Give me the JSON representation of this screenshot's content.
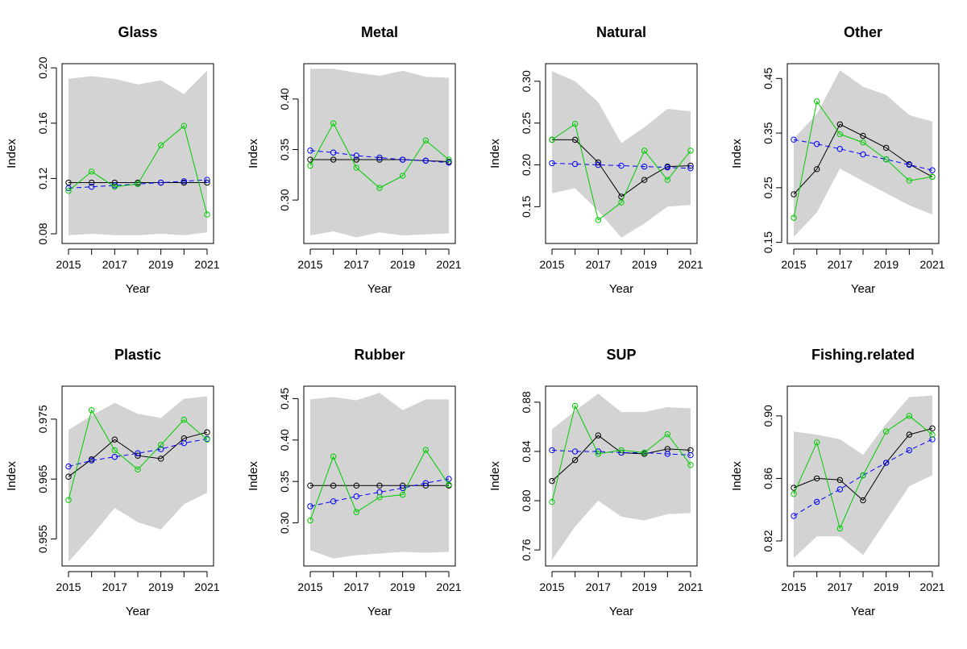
{
  "chart_data": [
    {
      "type": "line",
      "title": "Glass",
      "xlabel": "Year",
      "ylabel": "Index",
      "x": [
        2015,
        2016,
        2017,
        2018,
        2019,
        2020,
        2021
      ],
      "x_ticks": [
        "2015",
        "2017",
        "2019",
        "2021"
      ],
      "ylim": [
        0.073,
        0.203
      ],
      "y_ticks": [
        0.08,
        0.12,
        0.16,
        0.2
      ],
      "y_tick_labels": [
        "0.08",
        "0.12",
        "0.16",
        "0.20"
      ],
      "band": {
        "lower": [
          0.079,
          0.08,
          0.079,
          0.079,
          0.08,
          0.079,
          0.081
        ],
        "upper": [
          0.192,
          0.194,
          0.192,
          0.188,
          0.191,
          0.181,
          0.198
        ]
      },
      "series": [
        {
          "color": "#000000",
          "dash": "solid",
          "values": [
            0.117,
            0.117,
            0.117,
            0.117,
            0.117,
            0.117,
            0.117
          ]
        },
        {
          "color": "#0000ff",
          "dash": "dashed",
          "values": [
            0.113,
            0.114,
            0.115,
            0.116,
            0.117,
            0.118,
            0.119
          ]
        },
        {
          "color": "#00cc00",
          "dash": "solid",
          "values": [
            0.111,
            0.125,
            0.114,
            0.116,
            0.144,
            0.158,
            0.094
          ]
        }
      ]
    },
    {
      "type": "line",
      "title": "Metal",
      "xlabel": "Year",
      "ylabel": "Index",
      "x": [
        2015,
        2016,
        2017,
        2018,
        2019,
        2020,
        2021
      ],
      "x_ticks": [
        "2015",
        "2017",
        "2019",
        "2021"
      ],
      "ylim": [
        0.257,
        0.435
      ],
      "y_ticks": [
        0.3,
        0.35,
        0.4
      ],
      "y_tick_labels": [
        "0.30",
        "0.35",
        "0.40"
      ],
      "band": {
        "lower": [
          0.265,
          0.269,
          0.263,
          0.268,
          0.265,
          0.266,
          0.267
        ],
        "upper": [
          0.43,
          0.43,
          0.426,
          0.423,
          0.428,
          0.422,
          0.421
        ]
      },
      "series": [
        {
          "color": "#000000",
          "dash": "solid",
          "values": [
            0.34,
            0.34,
            0.34,
            0.34,
            0.34,
            0.339,
            0.338
          ]
        },
        {
          "color": "#0000ff",
          "dash": "dashed",
          "values": [
            0.349,
            0.347,
            0.344,
            0.342,
            0.34,
            0.339,
            0.337
          ]
        },
        {
          "color": "#00cc00",
          "dash": "solid",
          "values": [
            0.334,
            0.376,
            0.332,
            0.312,
            0.324,
            0.359,
            0.34
          ]
        }
      ]
    },
    {
      "type": "line",
      "title": "Natural",
      "xlabel": "Year",
      "ylabel": "Index",
      "x": [
        2015,
        2016,
        2017,
        2018,
        2019,
        2020,
        2021
      ],
      "x_ticks": [
        "2015",
        "2017",
        "2019",
        "2021"
      ],
      "ylim": [
        0.106,
        0.321
      ],
      "y_ticks": [
        0.15,
        0.2,
        0.25,
        0.3
      ],
      "y_tick_labels": [
        "0.15",
        "0.20",
        "0.25",
        "0.30"
      ],
      "band": {
        "lower": [
          0.166,
          0.172,
          0.145,
          0.113,
          0.13,
          0.15,
          0.152
        ],
        "upper": [
          0.312,
          0.3,
          0.275,
          0.226,
          0.245,
          0.267,
          0.264
        ]
      },
      "series": [
        {
          "color": "#000000",
          "dash": "solid",
          "values": [
            0.23,
            0.23,
            0.203,
            0.162,
            0.182,
            0.198,
            0.199
          ]
        },
        {
          "color": "#0000ff",
          "dash": "dashed",
          "values": [
            0.202,
            0.201,
            0.2,
            0.199,
            0.198,
            0.197,
            0.196
          ]
        },
        {
          "color": "#00cc00",
          "dash": "solid",
          "values": [
            0.23,
            0.249,
            0.134,
            0.155,
            0.217,
            0.182,
            0.217
          ]
        }
      ]
    },
    {
      "type": "line",
      "title": "Other",
      "xlabel": "Year",
      "ylabel": "Index",
      "x": [
        2015,
        2016,
        2017,
        2018,
        2019,
        2020,
        2021
      ],
      "x_ticks": [
        "2015",
        "2017",
        "2019",
        "2021"
      ],
      "ylim": [
        0.148,
        0.477
      ],
      "y_ticks": [
        0.15,
        0.25,
        0.35,
        0.45
      ],
      "y_tick_labels": [
        "0.15",
        "0.25",
        "0.35",
        "0.45"
      ],
      "band": {
        "lower": [
          0.16,
          0.205,
          0.285,
          0.262,
          0.24,
          0.218,
          0.201
        ],
        "upper": [
          0.34,
          0.385,
          0.465,
          0.435,
          0.42,
          0.383,
          0.371
        ]
      },
      "series": [
        {
          "color": "#000000",
          "dash": "solid",
          "values": [
            0.238,
            0.284,
            0.366,
            0.345,
            0.323,
            0.293,
            0.27
          ]
        },
        {
          "color": "#0000ff",
          "dash": "dashed",
          "values": [
            0.338,
            0.33,
            0.321,
            0.311,
            0.302,
            0.292,
            0.282
          ]
        },
        {
          "color": "#00cc00",
          "dash": "solid",
          "values": [
            0.195,
            0.408,
            0.348,
            0.333,
            0.302,
            0.263,
            0.27
          ]
        }
      ]
    },
    {
      "type": "line",
      "title": "Plastic",
      "xlabel": "Year",
      "ylabel": "Index",
      "x": [
        2015,
        2016,
        2017,
        2018,
        2019,
        2020,
        2021
      ],
      "x_ticks": [
        "2015",
        "2017",
        "2019",
        "2021"
      ],
      "ylim": [
        0.9505,
        0.9805
      ],
      "y_ticks": [
        0.955,
        0.965,
        0.975
      ],
      "y_tick_labels": [
        "0.955",
        "0.965",
        "0.975"
      ],
      "band": {
        "lower": [
          0.9512,
          0.9555,
          0.9602,
          0.9578,
          0.9566,
          0.9608,
          0.9627
        ],
        "upper": [
          0.9732,
          0.9756,
          0.9777,
          0.9759,
          0.9752,
          0.9784,
          0.9788
        ]
      },
      "series": [
        {
          "color": "#000000",
          "dash": "solid",
          "values": [
            0.9654,
            0.9683,
            0.9716,
            0.9689,
            0.9684,
            0.9718,
            0.9728
          ]
        },
        {
          "color": "#0000ff",
          "dash": "dashed",
          "values": [
            0.9671,
            0.9681,
            0.9687,
            0.9693,
            0.97,
            0.971,
            0.9717
          ]
        },
        {
          "color": "#00cc00",
          "dash": "solid",
          "values": [
            0.9615,
            0.9765,
            0.9698,
            0.9666,
            0.9707,
            0.9749,
            0.9716
          ]
        }
      ]
    },
    {
      "type": "line",
      "title": "Rubber",
      "xlabel": "Year",
      "ylabel": "Index",
      "x": [
        2015,
        2016,
        2017,
        2018,
        2019,
        2020,
        2021
      ],
      "x_ticks": [
        "2015",
        "2017",
        "2019",
        "2021"
      ],
      "ylim": [
        0.248,
        0.465
      ],
      "y_ticks": [
        0.3,
        0.35,
        0.4,
        0.45
      ],
      "y_tick_labels": [
        "0.30",
        "0.35",
        "0.40",
        "0.45"
      ],
      "band": {
        "lower": [
          0.267,
          0.257,
          0.261,
          0.263,
          0.265,
          0.264,
          0.265
        ],
        "upper": [
          0.449,
          0.452,
          0.448,
          0.457,
          0.436,
          0.449,
          0.449
        ]
      },
      "series": [
        {
          "color": "#000000",
          "dash": "solid",
          "values": [
            0.345,
            0.345,
            0.345,
            0.345,
            0.345,
            0.345,
            0.345
          ]
        },
        {
          "color": "#0000ff",
          "dash": "dashed",
          "values": [
            0.32,
            0.326,
            0.332,
            0.337,
            0.342,
            0.348,
            0.353
          ]
        },
        {
          "color": "#00cc00",
          "dash": "solid",
          "values": [
            0.303,
            0.38,
            0.313,
            0.331,
            0.334,
            0.388,
            0.346
          ]
        }
      ]
    },
    {
      "type": "line",
      "title": "SUP",
      "xlabel": "Year",
      "ylabel": "Index",
      "x": [
        2015,
        2016,
        2017,
        2018,
        2019,
        2020,
        2021
      ],
      "x_ticks": [
        "2015",
        "2017",
        "2019",
        "2021"
      ],
      "ylim": [
        0.747,
        0.893
      ],
      "y_ticks": [
        0.76,
        0.8,
        0.84,
        0.88
      ],
      "y_tick_labels": [
        "0.76",
        "0.80",
        "0.84",
        "0.88"
      ],
      "band": {
        "lower": [
          0.752,
          0.779,
          0.8,
          0.787,
          0.784,
          0.789,
          0.79
        ],
        "upper": [
          0.858,
          0.873,
          0.887,
          0.872,
          0.872,
          0.876,
          0.875
        ]
      },
      "series": [
        {
          "color": "#000000",
          "dash": "solid",
          "values": [
            0.816,
            0.833,
            0.853,
            0.839,
            0.838,
            0.842,
            0.841
          ]
        },
        {
          "color": "#0000ff",
          "dash": "dashed",
          "values": [
            0.841,
            0.84,
            0.84,
            0.839,
            0.839,
            0.838,
            0.837
          ]
        },
        {
          "color": "#00cc00",
          "dash": "solid",
          "values": [
            0.799,
            0.877,
            0.838,
            0.841,
            0.839,
            0.854,
            0.829
          ]
        }
      ]
    },
    {
      "type": "line",
      "title": "Fishing.related",
      "xlabel": "Year",
      "ylabel": "Index",
      "x": [
        2015,
        2016,
        2017,
        2018,
        2019,
        2020,
        2021
      ],
      "x_ticks": [
        "2015",
        "2017",
        "2019",
        "2021"
      ],
      "ylim": [
        0.804,
        0.919
      ],
      "y_ticks": [
        0.82,
        0.86,
        0.9
      ],
      "y_tick_labels": [
        "0.82",
        "0.86",
        "0.90"
      ],
      "band": {
        "lower": [
          0.809,
          0.823,
          0.823,
          0.811,
          0.833,
          0.855,
          0.862
        ],
        "upper": [
          0.89,
          0.888,
          0.885,
          0.875,
          0.895,
          0.912,
          0.913
        ]
      },
      "series": [
        {
          "color": "#000000",
          "dash": "solid",
          "values": [
            0.854,
            0.86,
            0.859,
            0.846,
            0.87,
            0.888,
            0.892
          ]
        },
        {
          "color": "#0000ff",
          "dash": "dashed",
          "values": [
            0.836,
            0.845,
            0.853,
            0.862,
            0.87,
            0.878,
            0.885
          ]
        },
        {
          "color": "#00cc00",
          "dash": "solid",
          "values": [
            0.85,
            0.883,
            0.828,
            0.862,
            0.89,
            0.9,
            0.888
          ]
        }
      ]
    }
  ]
}
